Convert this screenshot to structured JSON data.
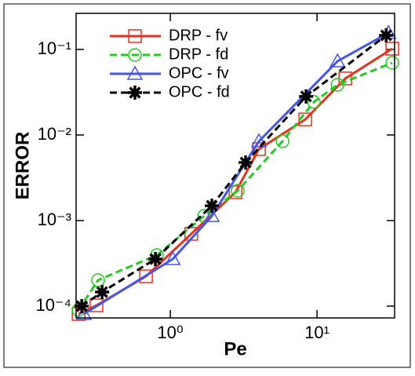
{
  "chart_data": {
    "type": "line",
    "xlabel": "Pe",
    "ylabel": "ERROR",
    "xscale": "log",
    "yscale": "log",
    "xlim": [
      0.228,
      33.8
    ],
    "ylim": [
      7.28e-05,
      0.264
    ],
    "xticks": [
      {
        "value": 1,
        "label": "10⁰"
      },
      {
        "value": 10,
        "label": "10¹"
      }
    ],
    "yticks": [
      {
        "value": 0.0001,
        "label": "10⁻⁴"
      },
      {
        "value": 0.001,
        "label": "10⁻³"
      },
      {
        "value": 0.01,
        "label": "10⁻²"
      },
      {
        "value": 0.1,
        "label": "10⁻¹"
      }
    ],
    "legend": "upper left",
    "series": [
      {
        "name": "DRP - fv",
        "color": "#e8321e",
        "marker": "square",
        "dash": false,
        "x": [
          0.237,
          0.314,
          0.683,
          1.39,
          2.78,
          4.02,
          8.32,
          15.6,
          32.6
        ],
        "values": [
          8.09e-05,
          0.000102,
          0.000223,
          0.000699,
          0.00214,
          0.00684,
          0.0152,
          0.0458,
          0.102
        ]
      },
      {
        "name": "DRP - fd",
        "color": "#22cc22",
        "marker": "circle",
        "dash": true,
        "x": [
          0.237,
          0.322,
          0.811,
          1.7,
          2.88,
          5.82,
          9.52,
          13.8,
          32.6
        ],
        "values": [
          9e-05,
          0.000201,
          0.000395,
          0.00113,
          0.00223,
          0.00845,
          0.0243,
          0.0386,
          0.0698
        ]
      },
      {
        "name": "OPC - fv",
        "color": "#4455ee",
        "marker": "triangle",
        "dash": false,
        "x": [
          0.258,
          1.04,
          1.92,
          4.02,
          13.8,
          30.7
        ],
        "values": [
          8.09e-05,
          0.000355,
          0.00113,
          0.00845,
          0.0728,
          0.156
        ]
      },
      {
        "name": "OPC - fd",
        "color": "#000000",
        "marker": "star",
        "dash": true,
        "x": [
          0.249,
          0.343,
          0.791,
          1.92,
          3.26,
          8.42,
          29.6
        ],
        "values": [
          0.0001,
          0.000146,
          0.000355,
          0.00149,
          0.00477,
          0.0282,
          0.146
        ]
      }
    ]
  }
}
